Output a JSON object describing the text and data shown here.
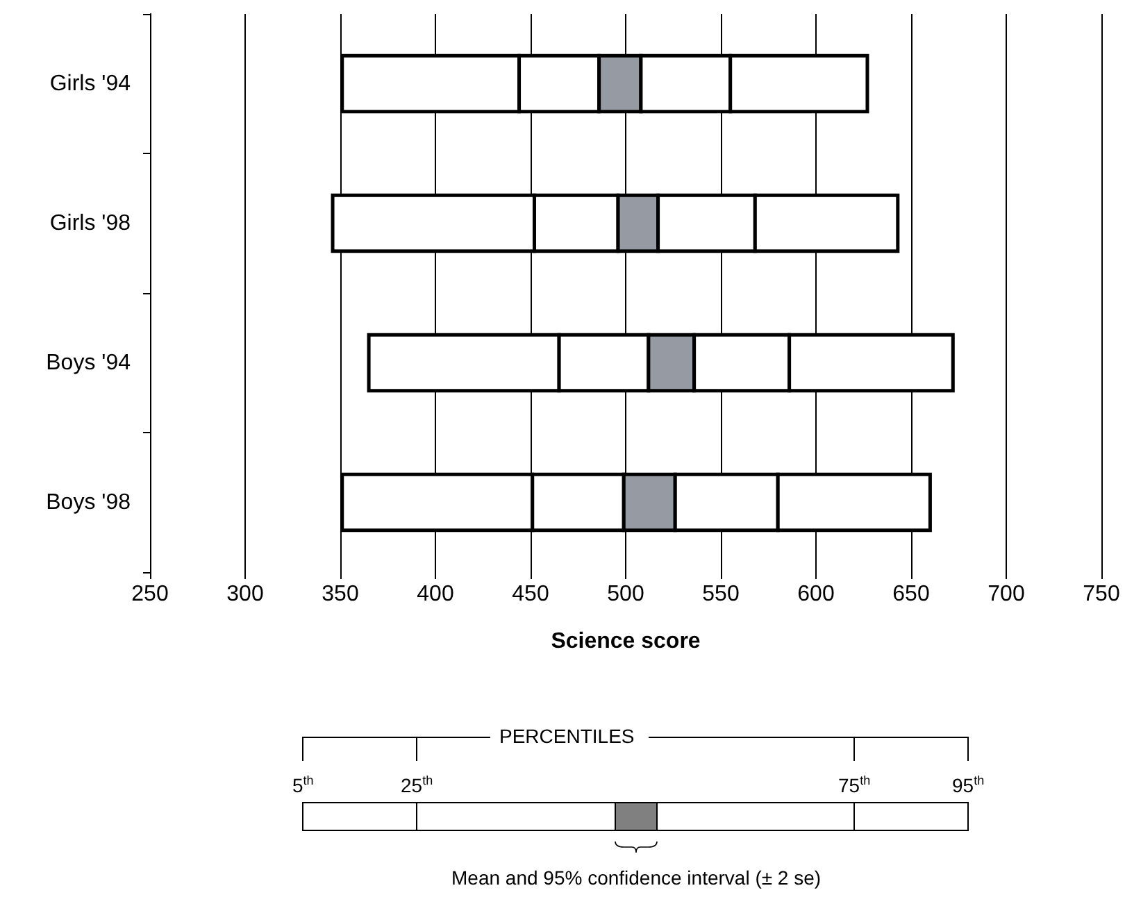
{
  "chart_data": {
    "type": "bar",
    "orientation": "horizontal",
    "xlabel": "Science score",
    "categories": [
      "Girls '94",
      "Girls '98",
      "Boys '94",
      "Boys '98"
    ],
    "series": [
      {
        "color": "#ffffff",
        "base": [
          351,
          346,
          365,
          351
        ],
        "values": [
          93,
          106,
          100,
          100
        ]
      },
      {
        "color": "#ffffff",
        "base": [
          444,
          452,
          465,
          451
        ],
        "values": [
          42,
          44,
          47,
          48
        ]
      },
      {
        "color": "#969aa3",
        "base": [
          486,
          496,
          512,
          499
        ],
        "values": [
          22,
          21,
          24,
          27
        ]
      },
      {
        "color": "#ffffff",
        "base": [
          508,
          517,
          536,
          526
        ],
        "values": [
          47,
          51,
          50,
          54
        ]
      },
      {
        "color": "#ffffff",
        "base": [
          555,
          568,
          586,
          580
        ],
        "values": [
          72,
          75,
          86,
          80
        ]
      }
    ],
    "xlim": [
      250,
      750
    ],
    "xticks": [
      250,
      300,
      350,
      400,
      450,
      500,
      550,
      600,
      650,
      700,
      750
    ],
    "grid": "x",
    "annotations": [
      "PERCENTILES",
      "5$^{th}$",
      "25$^{th}$",
      "75$^{th}$",
      "95$^{th}$",
      "Mean and 95% confidence interval (± 2 se)"
    ]
  }
}
